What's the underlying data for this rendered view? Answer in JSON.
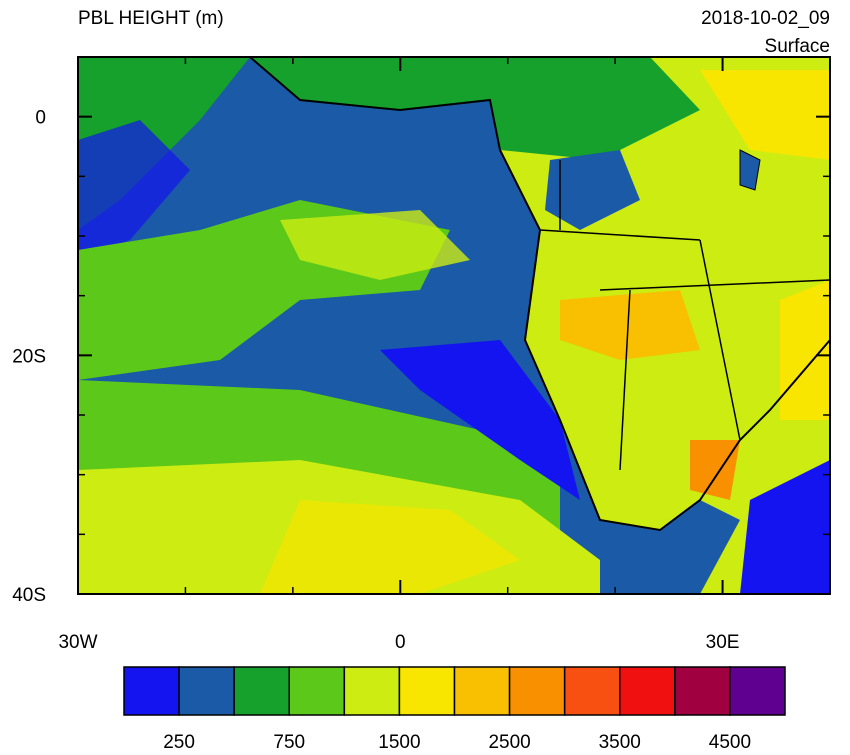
{
  "header": {
    "title": "PBL HEIGHT (m)",
    "time": "2018-10-02_09",
    "level": "Surface"
  },
  "map": {
    "lonlim": [
      -30,
      40
    ],
    "latlim": [
      -40,
      5
    ],
    "lat_ticks": [
      {
        "value": 0,
        "label": "0"
      },
      {
        "value": -20,
        "label": "20S"
      },
      {
        "value": -40,
        "label": "40S"
      }
    ],
    "lon_ticks": [
      {
        "value": -30,
        "label": "30W"
      },
      {
        "value": 0,
        "label": "0"
      },
      {
        "value": 30,
        "label": "30E"
      }
    ]
  },
  "colorbar": {
    "colors": [
      "#1414f0",
      "#1a5aa6",
      "#16a02c",
      "#5cc81a",
      "#ccec12",
      "#f8e600",
      "#f8c000",
      "#f89000",
      "#f85010",
      "#f01010",
      "#a00040",
      "#600090"
    ],
    "labels": [
      250,
      750,
      1500,
      2500,
      3500,
      4500
    ]
  }
}
